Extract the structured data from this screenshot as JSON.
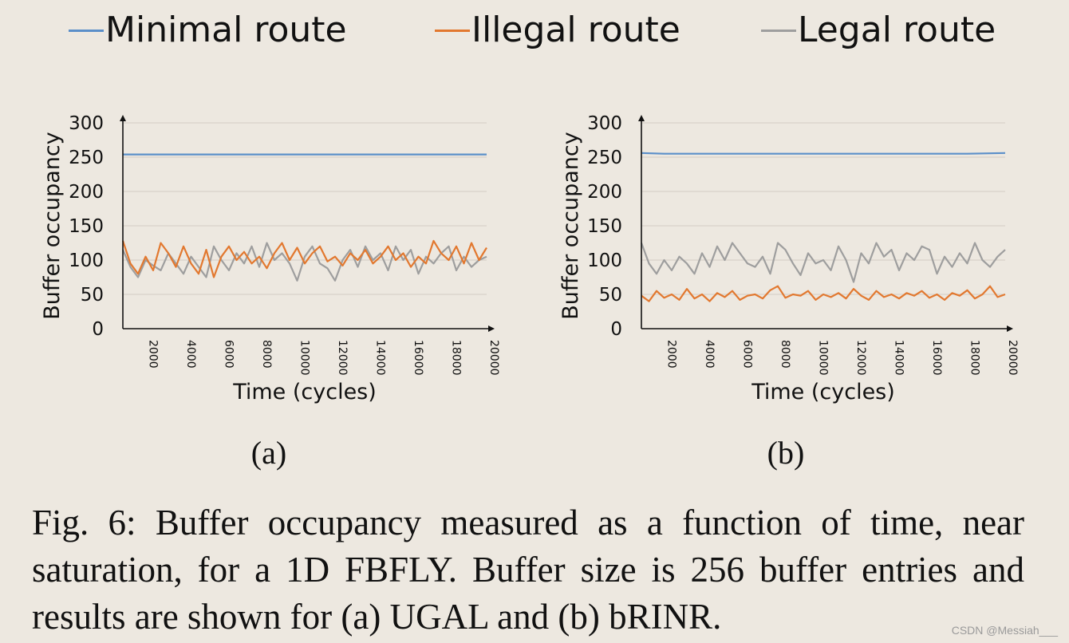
{
  "legend": {
    "items": [
      {
        "label": "Minimal route",
        "color": "#5b8fc9"
      },
      {
        "label": "Illegal route",
        "color": "#e2782f"
      },
      {
        "label": "Legal route",
        "color": "#9e9e9e"
      }
    ]
  },
  "chart_data": [
    {
      "type": "line",
      "panel_label": "(a)",
      "xlabel": "Time (cycles)",
      "ylabel": "Buffer occupancy",
      "ylim": [
        0,
        300
      ],
      "yticks": [
        0,
        50,
        100,
        150,
        200,
        250,
        300
      ],
      "xlim": [
        800,
        20000
      ],
      "xticks": [
        2000,
        4000,
        6000,
        8000,
        10000,
        12000,
        14000,
        16000,
        18000,
        20000
      ],
      "grid": true,
      "series": [
        {
          "name": "Minimal route",
          "color": "#5b8fc9",
          "x": [
            800,
            2000,
            4000,
            6000,
            8000,
            10000,
            12000,
            14000,
            16000,
            18000,
            20000
          ],
          "values": [
            254,
            254,
            254,
            254,
            254,
            254,
            254,
            254,
            254,
            254,
            254
          ]
        },
        {
          "name": "Illegal route",
          "color": "#e2782f",
          "x": [
            800,
            1200,
            1600,
            2000,
            2400,
            2800,
            3200,
            3600,
            4000,
            4400,
            4800,
            5200,
            5600,
            6000,
            6400,
            6800,
            7200,
            7600,
            8000,
            8400,
            8800,
            9200,
            9600,
            10000,
            10400,
            10800,
            11200,
            11600,
            12000,
            12400,
            12800,
            13200,
            13600,
            14000,
            14400,
            14800,
            15200,
            15600,
            16000,
            16400,
            16800,
            17200,
            17600,
            18000,
            18400,
            18800,
            19200,
            19600,
            20000
          ],
          "values": [
            128,
            95,
            80,
            105,
            85,
            125,
            110,
            90,
            120,
            95,
            80,
            115,
            75,
            105,
            120,
            100,
            112,
            95,
            105,
            88,
            110,
            125,
            100,
            118,
            95,
            110,
            120,
            98,
            105,
            92,
            110,
            100,
            115,
            95,
            105,
            120,
            100,
            110,
            90,
            105,
            95,
            128,
            110,
            100,
            120,
            95,
            125,
            100,
            118
          ]
        },
        {
          "name": "Legal route",
          "color": "#9e9e9e",
          "x": [
            800,
            1200,
            1600,
            2000,
            2400,
            2800,
            3200,
            3600,
            4000,
            4400,
            4800,
            5200,
            5600,
            6000,
            6400,
            6800,
            7200,
            7600,
            8000,
            8400,
            8800,
            9200,
            9600,
            10000,
            10400,
            10800,
            11200,
            11600,
            12000,
            12400,
            12800,
            13200,
            13600,
            14000,
            14400,
            14800,
            15200,
            15600,
            16000,
            16400,
            16800,
            17200,
            17600,
            18000,
            18400,
            18800,
            19200,
            19600,
            20000
          ],
          "values": [
            115,
            90,
            75,
            100,
            92,
            85,
            110,
            95,
            80,
            105,
            90,
            75,
            120,
            100,
            85,
            110,
            95,
            120,
            90,
            125,
            100,
            110,
            95,
            70,
            105,
            120,
            95,
            88,
            70,
            100,
            115,
            90,
            120,
            100,
            110,
            85,
            120,
            100,
            115,
            80,
            105,
            95,
            110,
            120,
            85,
            105,
            90,
            100,
            105
          ]
        }
      ]
    },
    {
      "type": "line",
      "panel_label": "(b)",
      "xlabel": "Time (cycles)",
      "ylabel": "Buffer occupancy",
      "ylim": [
        0,
        300
      ],
      "yticks": [
        0,
        50,
        100,
        150,
        200,
        250,
        300
      ],
      "xlim": [
        800,
        20000
      ],
      "xticks": [
        2000,
        4000,
        6000,
        8000,
        10000,
        12000,
        14000,
        16000,
        18000,
        20000
      ],
      "grid": true,
      "series": [
        {
          "name": "Minimal route",
          "color": "#5b8fc9",
          "x": [
            800,
            2000,
            4000,
            6000,
            8000,
            10000,
            12000,
            14000,
            16000,
            18000,
            20000
          ],
          "values": [
            256,
            255,
            255,
            255,
            255,
            255,
            255,
            255,
            255,
            255,
            256
          ]
        },
        {
          "name": "Illegal route",
          "color": "#e2782f",
          "x": [
            800,
            1200,
            1600,
            2000,
            2400,
            2800,
            3200,
            3600,
            4000,
            4400,
            4800,
            5200,
            5600,
            6000,
            6400,
            6800,
            7200,
            7600,
            8000,
            8400,
            8800,
            9200,
            9600,
            10000,
            10400,
            10800,
            11200,
            11600,
            12000,
            12400,
            12800,
            13200,
            13600,
            14000,
            14400,
            14800,
            15200,
            15600,
            16000,
            16400,
            16800,
            17200,
            17600,
            18000,
            18400,
            18800,
            19200,
            19600,
            20000
          ],
          "values": [
            48,
            40,
            55,
            45,
            50,
            42,
            58,
            44,
            50,
            40,
            52,
            46,
            55,
            42,
            48,
            50,
            44,
            56,
            62,
            45,
            50,
            48,
            55,
            42,
            50,
            46,
            52,
            44,
            58,
            48,
            42,
            55,
            46,
            50,
            44,
            52,
            48,
            55,
            45,
            50,
            42,
            52,
            48,
            56,
            44,
            50,
            62,
            46,
            50
          ]
        },
        {
          "name": "Legal route",
          "color": "#9e9e9e",
          "x": [
            800,
            1200,
            1600,
            2000,
            2400,
            2800,
            3200,
            3600,
            4000,
            4400,
            4800,
            5200,
            5600,
            6000,
            6400,
            6800,
            7200,
            7600,
            8000,
            8400,
            8800,
            9200,
            9600,
            10000,
            10400,
            10800,
            11200,
            11600,
            12000,
            12400,
            12800,
            13200,
            13600,
            14000,
            14400,
            14800,
            15200,
            15600,
            16000,
            16400,
            16800,
            17200,
            17600,
            18000,
            18400,
            18800,
            19200,
            19600,
            20000
          ],
          "values": [
            125,
            95,
            80,
            100,
            85,
            105,
            95,
            80,
            110,
            90,
            120,
            100,
            125,
            110,
            95,
            90,
            105,
            80,
            125,
            115,
            95,
            78,
            110,
            95,
            100,
            85,
            120,
            100,
            68,
            110,
            95,
            125,
            105,
            115,
            85,
            110,
            100,
            120,
            115,
            80,
            105,
            90,
            110,
            95,
            125,
            100,
            90,
            105,
            115
          ]
        }
      ]
    }
  ],
  "caption": "Fig. 6: Buffer occupancy measured as a function of time, near saturation, for a 1D FBFLY. Buffer size is 256 buffer entries and results are shown for (a) UGAL and (b) bRINR.",
  "watermark": "CSDN @Messiah___"
}
